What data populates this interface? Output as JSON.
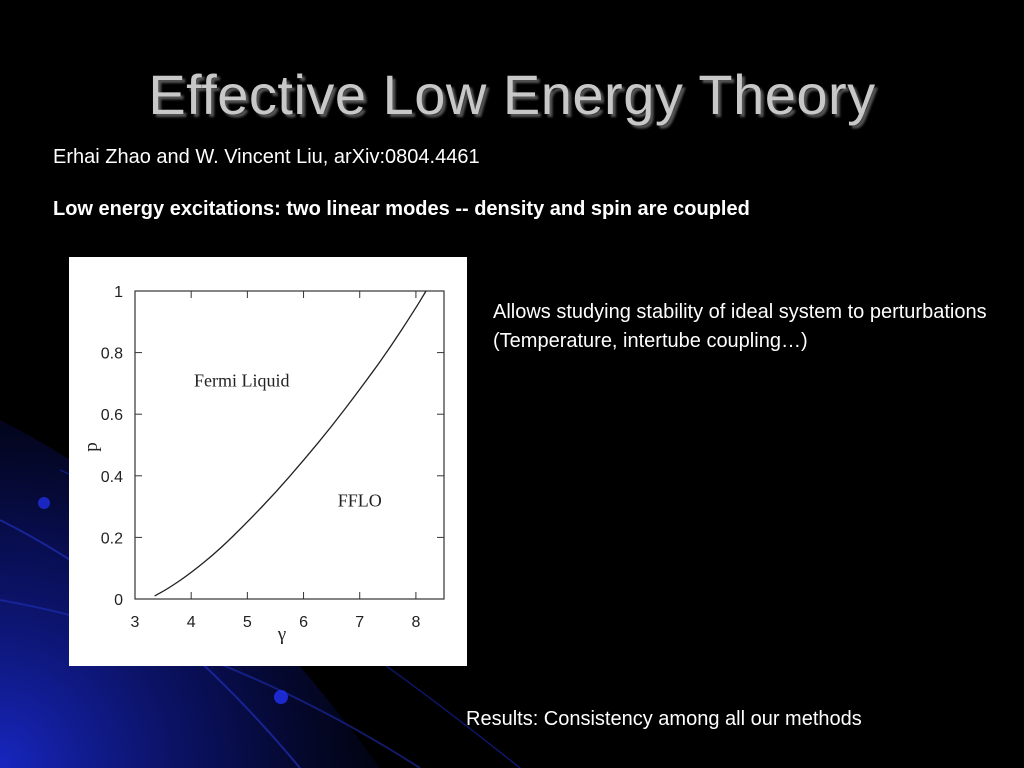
{
  "slide": {
    "title": "Effective Low Energy Theory",
    "authors": "Erhai Zhao and W. Vincent Liu, arXiv:0804.4461",
    "subtitle": "Low energy excitations:  two linear modes -- density and spin are coupled",
    "right_text": {
      "line1": "Allows studying stability of ideal system to perturbations",
      "line2": "(Temperature, intertube coupling…)"
    },
    "results": "Results: Consistency among all our methods"
  },
  "colors": {
    "background": "#000000",
    "title": "#c8c8c8",
    "decor_blue": "#1a2bd6"
  },
  "chart_data": {
    "type": "line",
    "xlabel": "γ",
    "ylabel": "p",
    "xlim": [
      3,
      8.5
    ],
    "ylim": [
      0,
      1
    ],
    "x_ticks": [
      3,
      4,
      5,
      6,
      7,
      8
    ],
    "y_ticks": [
      0,
      0.2,
      0.4,
      0.6,
      0.8,
      1
    ],
    "y_tick_labels": [
      "0",
      "0.2",
      "0.4",
      "0.6",
      "0.8",
      "1"
    ],
    "series": [
      {
        "x": [
          3.35,
          3.6,
          4.0,
          4.5,
          5.0,
          5.5,
          6.0,
          6.5,
          7.0,
          7.5,
          8.0,
          8.18
        ],
        "y": [
          0.01,
          0.035,
          0.085,
          0.16,
          0.25,
          0.345,
          0.45,
          0.56,
          0.68,
          0.805,
          0.945,
          1.0
        ]
      }
    ],
    "annotations": [
      {
        "text": "Fermi Liquid",
        "x": 4.9,
        "y": 0.69
      },
      {
        "text": "FFLO",
        "x": 7.0,
        "y": 0.3
      }
    ]
  }
}
